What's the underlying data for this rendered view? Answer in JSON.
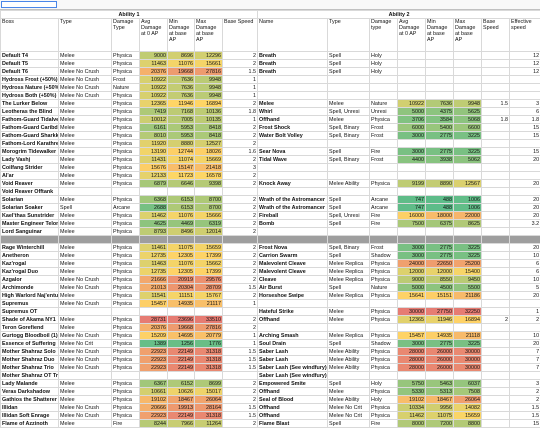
{
  "header": {
    "group_left": "Ability 1",
    "group_right": "Ability 2",
    "columns_left": [
      "Boss",
      "Type",
      "Damage Type",
      "Avg Damage at 0 AP",
      "Min Damage at base AP",
      "Max Damage at base AP",
      "Base Speed"
    ],
    "columns_right": [
      "Name",
      "Type",
      "Damage type",
      "Avg Damage at 0 AP",
      "Min Damage at base AP",
      "Max Damage at base AP",
      "Base Speed",
      "Effective speed"
    ]
  },
  "table": {
    "rows": [
      {
        "left": [
          "Default T4",
          "Melee",
          "Physica",
          9000,
          8696,
          12296,
          2
        ],
        "right": [
          "Breath",
          "Spell",
          "Holy",
          null,
          null,
          null,
          null,
          12
        ]
      },
      {
        "left": [
          "Default T5",
          "Melee",
          "Physica",
          11463,
          11076,
          15661,
          2
        ],
        "right": [
          "Breath",
          "Spell",
          "Holy",
          null,
          null,
          null,
          null,
          12
        ]
      },
      {
        "left": [
          "Default T6",
          "Melee No Crush",
          "Physica",
          20376,
          19668,
          27816,
          1.5
        ],
        "right": [
          "Breath",
          "Spell",
          "Holy",
          null,
          null,
          null,
          null,
          12
        ]
      },
      {
        "left": [
          "Hydross Frost (+50%)",
          "Melee No Crush",
          "Frost",
          10922,
          7636,
          9948,
          1
        ],
        "right": [
          null,
          null,
          null,
          null,
          null,
          null,
          null,
          null
        ]
      },
      {
        "left": [
          "Hydross Nature (+50%)",
          "Melee No Crush",
          "Nature",
          10922,
          7636,
          9948,
          1
        ],
        "right": [
          null,
          null,
          null,
          null,
          null,
          null,
          null,
          null
        ]
      },
      {
        "left": [
          "Hydross Both (+50%)",
          "Melee No Crush",
          "Physica",
          10922,
          7636,
          9948,
          1
        ],
        "right": [
          null,
          null,
          null,
          null,
          null,
          null,
          null,
          null
        ]
      },
      {
        "left": [
          "The Lurker Below",
          "Melee",
          "Physica",
          12365,
          11946,
          16894,
          2
        ],
        "right": [
          "Melee",
          "Melee",
          "Nature",
          10922,
          7636,
          9948,
          1.5,
          3
        ]
      },
      {
        "left": [
          "Leotheras the Blind",
          "Melee",
          "Physica",
          7419,
          7168,
          10136,
          1.8
        ],
        "right": [
          "Whirl",
          "Spell, Unresi",
          "Unresi",
          5000,
          4375,
          5625,
          null,
          6
        ]
      },
      {
        "left": [
          "Fathom-Guard Tidalvess",
          "Melee",
          "Physica",
          10012,
          7005,
          10135,
          1
        ],
        "right": [
          "Offhand",
          "Melee",
          "Physica",
          3706,
          3584,
          5068,
          1.8,
          1.8
        ]
      },
      {
        "left": [
          "Fathom-Guard Caribdis",
          "Melee",
          "Physica",
          6161,
          5953,
          8418,
          2
        ],
        "right": [
          "Frost Shock",
          "Spell, Binary",
          "Frost",
          6000,
          5400,
          6600,
          null,
          15
        ]
      },
      {
        "left": [
          "Fathom-Guard Sharkkis",
          "Melee",
          "Physica",
          8010,
          5953,
          8418,
          2
        ],
        "right": [
          "Water Bolt Volley",
          "Spell, Binary",
          "Frost",
          3000,
          2775,
          3225,
          null,
          15
        ]
      },
      {
        "left": [
          "Fathom-Lord Karathress",
          "Melee",
          "Physica",
          11920,
          8880,
          12527,
          2
        ],
        "right": [
          null,
          null,
          null,
          null,
          null,
          null,
          null,
          null
        ]
      },
      {
        "left": [
          "Morogrim Tidewalker",
          "Melee",
          "Physica",
          13190,
          12744,
          18026,
          1.6
        ],
        "right": [
          "Sear Nova",
          "Spell",
          "Fire",
          3000,
          2775,
          3225,
          null,
          15
        ]
      },
      {
        "left": [
          "Lady Vashj",
          "Melee",
          "Physica",
          11431,
          11074,
          15669,
          2
        ],
        "right": [
          "Tidal Wave",
          "Spell, Binary",
          "Frost",
          4400,
          3938,
          5062,
          null,
          20
        ]
      },
      {
        "left": [
          "Coilfang Strider",
          "Melee",
          "Physica",
          15676,
          15147,
          21418,
          3
        ],
        "right": [
          null,
          null,
          null,
          null,
          null,
          null,
          null,
          null
        ]
      },
      {
        "left": [
          "Al'ar",
          "Melee",
          "Physica",
          12133,
          11723,
          16578,
          2
        ],
        "right": [
          null,
          null,
          null,
          null,
          null,
          null,
          null,
          null
        ]
      },
      {
        "left": [
          "Void Reaver",
          "Melee",
          "Physica",
          6879,
          6646,
          9398,
          2
        ],
        "right": [
          "Knock Away",
          "Melee Ability",
          "Physica",
          9199,
          8890,
          12567,
          null,
          20
        ]
      },
      {
        "left": [
          "Void Reaver Offtank",
          null,
          null,
          null,
          null,
          null,
          null
        ],
        "right": [
          null,
          null,
          null,
          null,
          null,
          null,
          null,
          null
        ]
      },
      {
        "left": [
          "Solarian",
          "Melee",
          "Physica",
          6368,
          6153,
          8700,
          2
        ],
        "right": [
          "Wrath of the Astromancer",
          "Spell",
          "Arcane",
          747,
          488,
          1006,
          null,
          20
        ]
      },
      {
        "left": [
          "Solarian Soaker",
          "Spell",
          "Arcane",
          2688,
          6153,
          8700,
          2
        ],
        "right": [
          "Wrath of the Astromancer",
          "Spell",
          "Arcane",
          747,
          488,
          1006,
          null,
          20
        ]
      },
      {
        "left": [
          "Kael'thas Sunstrider",
          "Melee",
          "Physica",
          11462,
          11076,
          15666,
          2
        ],
        "right": [
          "Fireball",
          "Spell, Unresi",
          "Fire",
          16000,
          18000,
          22000,
          null,
          20
        ]
      },
      {
        "left": [
          "Master Engineer Telonicus",
          "Melee",
          "Physica",
          4625,
          4469,
          6319,
          2
        ],
        "right": [
          "Bomb",
          "Spell",
          "Fire",
          7500,
          6375,
          8625,
          null,
          3.2
        ]
      },
      {
        "left": [
          "Lord Sanguinar",
          "Melee",
          "Physica",
          8793,
          8496,
          12014,
          2
        ],
        "right": [
          null,
          null,
          null,
          null,
          null,
          null,
          null,
          null
        ]
      },
      {
        "left": [
          null,
          null,
          null,
          null,
          null,
          null,
          null
        ],
        "right": [
          null,
          null,
          null,
          null,
          null,
          null,
          null,
          null
        ]
      },
      {
        "left": [
          "Rage Winterchill",
          "Melee",
          "Physica",
          11461,
          11075,
          15659,
          2
        ],
        "right": [
          "Frost Nova",
          "Spell, Binary",
          "Frost",
          3000,
          2775,
          3225,
          null,
          20
        ]
      },
      {
        "left": [
          "Anetheron",
          "Melee",
          "Physica",
          12735,
          12305,
          17399,
          2
        ],
        "right": [
          "Carrion Swarm",
          "Spell",
          "Shadow",
          3000,
          2775,
          3225,
          null,
          10
        ]
      },
      {
        "left": [
          "Kaz'rogal",
          "Melee",
          "Physica",
          11463,
          11076,
          15662,
          2
        ],
        "right": [
          "Malevolent Cleave",
          "Melee Replica",
          "Physica",
          24000,
          22650,
          25200,
          null,
          6
        ]
      },
      {
        "left": [
          "Kaz'rogal Duo",
          "Melee",
          "Physica",
          12735,
          12305,
          17399,
          2
        ],
        "right": [
          "Malevolent Cleave",
          "Melee Replica",
          "Physica",
          12000,
          12000,
          15400,
          null,
          6
        ]
      },
      {
        "left": [
          "Azgalor",
          "Melee No Crush",
          "Physica",
          21666,
          20919,
          29576,
          2
        ],
        "right": [
          "Cleave",
          "Melee Replica",
          "Physica",
          9000,
          8550,
          9450,
          null,
          10
        ]
      },
      {
        "left": [
          "Archimonde",
          "Melee No Crush",
          "Physica",
          21013,
          20304,
          28709,
          1.5
        ],
        "right": [
          "Air Burst",
          "Spell",
          "Nature",
          5000,
          4500,
          5500,
          null,
          5
        ]
      },
      {
        "left": [
          "High Warlord Naj'entus",
          "Melee",
          "Physica",
          11541,
          11151,
          15767,
          2
        ],
        "right": [
          "Horseshoe Swipe",
          "Melee Replica",
          "Physica",
          15641,
          15151,
          21186,
          null,
          20
        ]
      },
      {
        "left": [
          "Supremus",
          "Melee No Crush",
          "Physica",
          15457,
          14935,
          21117,
          1
        ],
        "right": [
          null,
          null,
          null,
          null,
          null,
          null,
          null,
          null
        ]
      },
      {
        "left": [
          "Supremus OT",
          null,
          null,
          null,
          null,
          null,
          null
        ],
        "right": [
          "Hateful Strike",
          "Melee",
          "Physica",
          30000,
          27750,
          32250,
          null,
          1
        ]
      },
      {
        "left": [
          "Shade of Akama NY1",
          "Melee",
          "Physica",
          28731,
          23696,
          33510,
          2
        ],
        "right": [
          "Offhand",
          "Melee",
          "Physica",
          12365,
          11946,
          16894,
          2,
          2
        ]
      },
      {
        "left": [
          "Teron Gorefiend",
          "Melee",
          "Physica",
          20376,
          19668,
          27816,
          2
        ],
        "right": [
          null,
          null,
          null,
          null,
          null,
          null,
          null,
          null
        ]
      },
      {
        "left": [
          "Gurtogg Bloodboil (1)",
          "Melee No Crush",
          "Physica",
          15209,
          14695,
          20779,
          1
        ],
        "right": [
          "Arching Smash",
          "Melee Replica",
          "Physica",
          15457,
          14935,
          21118,
          null,
          10
        ]
      },
      {
        "left": [
          "Essence of Suffering",
          "Melee No Crit",
          "Physica",
          1389,
          1256,
          1776,
          1
        ],
        "right": [
          "Soul Drain",
          "Spell",
          "Shadow",
          3000,
          2775,
          3225,
          null,
          20
        ]
      },
      {
        "left": [
          "Mother Shahraz Solo",
          "Melee No Crush",
          "Physica",
          22923,
          22149,
          31318,
          1.5
        ],
        "right": [
          "Saber Lash",
          "Melee Ability",
          "Physica",
          28000,
          26000,
          30000,
          null,
          7
        ]
      },
      {
        "left": [
          "Mother Shahraz Duo",
          "Melee No Crush",
          "Physica",
          22923,
          22149,
          31318,
          1.5
        ],
        "right": [
          "Saber Lash",
          "Melee Ability",
          "Physica",
          28000,
          26000,
          30000,
          null,
          7
        ]
      },
      {
        "left": [
          "Mother Shahraz Trio",
          "Melee No Crush",
          "Physica",
          22923,
          22149,
          31318,
          1.5
        ],
        "right": [
          "Saber Lash (See windfury)",
          "Melee Ability",
          "Physica",
          28000,
          26000,
          30000,
          null,
          7
        ]
      },
      {
        "left": [
          "Mother Shahraz OT Trio",
          null,
          null,
          null,
          null,
          null,
          null
        ],
        "right": [
          "Saber Lash (See windfury)",
          null,
          null,
          null,
          null,
          null,
          null,
          null
        ]
      },
      {
        "left": [
          "Lady Malande",
          "Melee",
          "Physica",
          6367,
          6152,
          8699,
          2
        ],
        "right": [
          "Empowered Smite",
          "Spell",
          "Holy",
          5750,
          5463,
          6037,
          null,
          3
        ]
      },
      {
        "left": [
          "Veras Darkshadow",
          "Melee",
          "Physica",
          10661,
          10626,
          15017,
          2
        ],
        "right": [
          "Offhand",
          "Melee",
          "Physica",
          5330,
          5313,
          7508,
          null,
          2
        ]
      },
      {
        "left": [
          "Gathios the Shatterer",
          "Melee",
          "Physica",
          19102,
          18467,
          26064,
          2
        ],
        "right": [
          "Seal of Blood",
          "Melee Ability",
          "Holy",
          19102,
          18467,
          26064,
          null,
          2
        ]
      },
      {
        "left": [
          "Illidan",
          "Melee No Crush",
          "Physica",
          20666,
          19913,
          28164,
          1.5
        ],
        "right": [
          "Offhand",
          "Melee No Crit",
          "Physica",
          10334,
          9956,
          14082,
          null,
          1.5
        ]
      },
      {
        "left": [
          "Illidan Soft Enrage",
          "Melee No Crush",
          "Physica",
          22923,
          22149,
          31318,
          1.5
        ],
        "right": [
          "Offhand",
          "Melee No Crit",
          "Physica",
          11462,
          11075,
          15659,
          null,
          1.5
        ]
      },
      {
        "left": [
          "Flame of Azzinoth",
          "Melee",
          "Fire",
          8244,
          7966,
          11264,
          2
        ],
        "right": [
          "Flame Blast",
          "Spell",
          "Fire",
          8000,
          7200,
          8800,
          null,
          15
        ]
      }
    ]
  }
}
